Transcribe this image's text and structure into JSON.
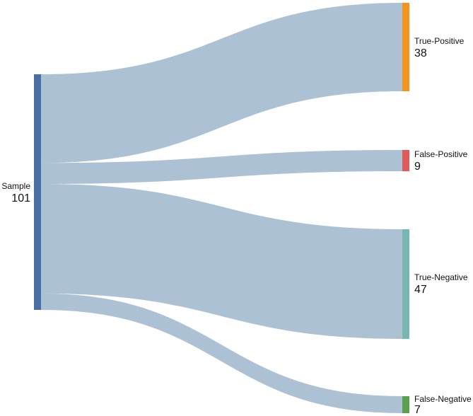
{
  "diagram": {
    "source": {
      "label": "Sample",
      "value": "101",
      "color": "#4a6fa5"
    },
    "targets": [
      {
        "label": "True-Positive",
        "value": "38",
        "color": "#f5931f"
      },
      {
        "label": "False-Positive",
        "value": "9",
        "color": "#e05a5a"
      },
      {
        "label": "True-Negative",
        "value": "47",
        "color": "#76b7b2"
      },
      {
        "label": "False-Negative",
        "value": "7",
        "color": "#59a14f"
      }
    ],
    "link_color": "#adc1d5"
  }
}
